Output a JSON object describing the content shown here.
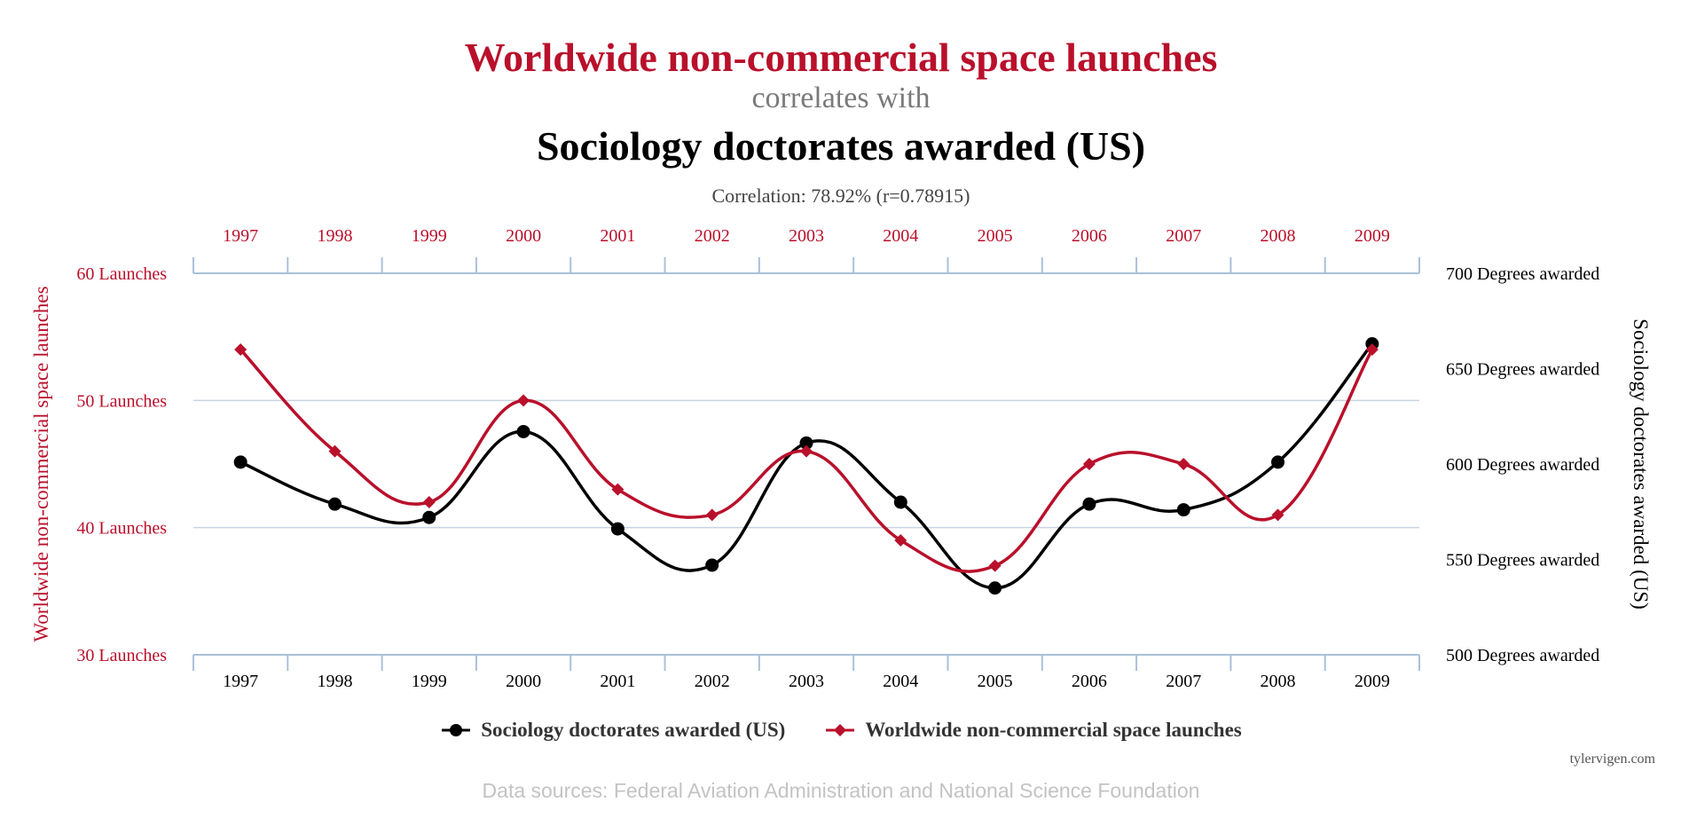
{
  "chart_data": {
    "type": "line",
    "title": "Worldwide non-commercial space launches",
    "subtitle": "correlates with",
    "title2": "Sociology doctorates awarded (US)",
    "correlation": "Correlation: 78.92% (r=0.78915)",
    "categories": [
      "1997",
      "1998",
      "1999",
      "2000",
      "2001",
      "2002",
      "2003",
      "2004",
      "2005",
      "2006",
      "2007",
      "2008",
      "2009"
    ],
    "series": [
      {
        "name": "Sociology doctorates awarded (US)",
        "axis": "right",
        "color": "#000000",
        "marker": "circle",
        "values": [
          601,
          579,
          572,
          617,
          566,
          547,
          611,
          580,
          535,
          579,
          576,
          601,
          663
        ]
      },
      {
        "name": "Worldwide non-commercial space launches",
        "axis": "left",
        "color": "#b9102b",
        "marker": "diamond",
        "values": [
          54,
          46,
          42,
          50,
          43,
          41,
          46,
          39,
          37,
          45,
          45,
          41,
          54
        ]
      }
    ],
    "y_left": {
      "label": "Worldwide non-commercial space launches",
      "ylim": [
        30,
        60
      ],
      "ticks": [
        "60 Launches",
        "50 Launches",
        "40 Launches",
        "30 Launches"
      ]
    },
    "y_right": {
      "label": "Sociology doctorates awarded (US)",
      "ylim": [
        500,
        700
      ],
      "ticks": [
        "700 Degrees awarded",
        "650 Degrees awarded",
        "600 Degrees awarded",
        "550 Degrees awarded",
        "500 Degrees awarded"
      ]
    },
    "grid": true,
    "legend_position": "bottom"
  },
  "legend": {
    "items": [
      "Sociology doctorates awarded (US)",
      "Worldwide non-commercial space launches"
    ]
  },
  "sources": "Data sources: Federal Aviation Administration and National Science Foundation",
  "credit": "tylervigen.com",
  "colors": {
    "red": "#b9102b",
    "black": "#000000",
    "grid": "#c8d4e2",
    "axis": "#a9c0d9"
  }
}
